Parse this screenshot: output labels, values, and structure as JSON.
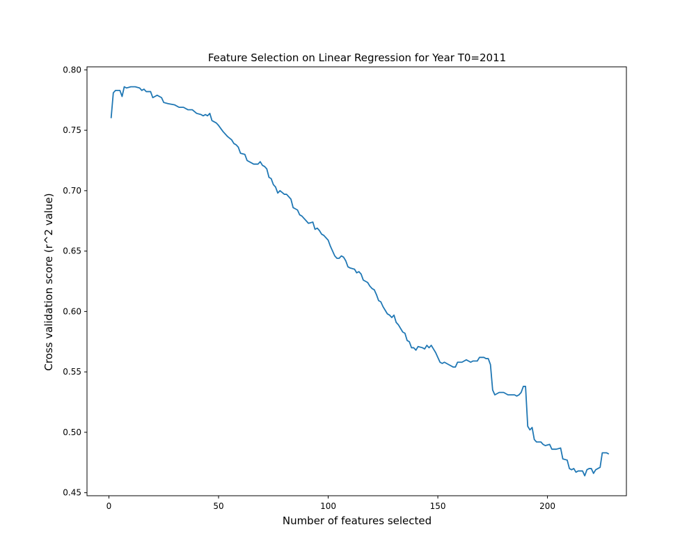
{
  "chart_data": {
    "type": "line",
    "title": "Feature Selection on Linear Regression for Year T0=2011",
    "xlabel": "Number of features selected",
    "ylabel": "Cross validation score (r^2 value)",
    "xlim": [
      -10,
      236
    ],
    "ylim": [
      0.4475,
      0.8025
    ],
    "xticks": [
      0,
      50,
      100,
      150,
      200
    ],
    "xtick_labels": [
      "0",
      "50",
      "100",
      "150",
      "200"
    ],
    "yticks": [
      0.45,
      0.5,
      0.55,
      0.6,
      0.65,
      0.7,
      0.75,
      0.8
    ],
    "ytick_labels": [
      "0.45",
      "0.50",
      "0.55",
      "0.60",
      "0.65",
      "0.70",
      "0.75",
      "0.80"
    ],
    "grid": false,
    "legend": "none",
    "series": [
      {
        "color": "#1f77b4",
        "points": [
          [
            1,
            0.76
          ],
          [
            2,
            0.781
          ],
          [
            3,
            0.783
          ],
          [
            5,
            0.783
          ],
          [
            6,
            0.778
          ],
          [
            7,
            0.786
          ],
          [
            8,
            0.785
          ],
          [
            10,
            0.786
          ],
          [
            12,
            0.786
          ],
          [
            14,
            0.785
          ],
          [
            15,
            0.783
          ],
          [
            16,
            0.784
          ],
          [
            17,
            0.782
          ],
          [
            19,
            0.782
          ],
          [
            20,
            0.777
          ],
          [
            22,
            0.779
          ],
          [
            24,
            0.777
          ],
          [
            25,
            0.773
          ],
          [
            27,
            0.772
          ],
          [
            30,
            0.771
          ],
          [
            32,
            0.769
          ],
          [
            34,
            0.769
          ],
          [
            36,
            0.767
          ],
          [
            38,
            0.767
          ],
          [
            40,
            0.764
          ],
          [
            42,
            0.763
          ],
          [
            43,
            0.762
          ],
          [
            44,
            0.763
          ],
          [
            45,
            0.762
          ],
          [
            46,
            0.764
          ],
          [
            47,
            0.758
          ],
          [
            49,
            0.756
          ],
          [
            50,
            0.754
          ],
          [
            52,
            0.749
          ],
          [
            54,
            0.745
          ],
          [
            56,
            0.742
          ],
          [
            57,
            0.739
          ],
          [
            58,
            0.738
          ],
          [
            59,
            0.736
          ],
          [
            60,
            0.731
          ],
          [
            62,
            0.73
          ],
          [
            63,
            0.725
          ],
          [
            65,
            0.723
          ],
          [
            66,
            0.722
          ],
          [
            68,
            0.722
          ],
          [
            69,
            0.724
          ],
          [
            70,
            0.721
          ],
          [
            71,
            0.72
          ],
          [
            72,
            0.718
          ],
          [
            73,
            0.711
          ],
          [
            74,
            0.71
          ],
          [
            75,
            0.705
          ],
          [
            76,
            0.703
          ],
          [
            77,
            0.698
          ],
          [
            78,
            0.7
          ],
          [
            80,
            0.697
          ],
          [
            81,
            0.697
          ],
          [
            82,
            0.695
          ],
          [
            83,
            0.693
          ],
          [
            84,
            0.686
          ],
          [
            85,
            0.685
          ],
          [
            86,
            0.684
          ],
          [
            87,
            0.68
          ],
          [
            88,
            0.679
          ],
          [
            90,
            0.675
          ],
          [
            91,
            0.673
          ],
          [
            93,
            0.674
          ],
          [
            94,
            0.668
          ],
          [
            95,
            0.669
          ],
          [
            96,
            0.667
          ],
          [
            97,
            0.664
          ],
          [
            98,
            0.663
          ],
          [
            100,
            0.659
          ],
          [
            101,
            0.654
          ],
          [
            103,
            0.646
          ],
          [
            104,
            0.644
          ],
          [
            105,
            0.644
          ],
          [
            106,
            0.646
          ],
          [
            107,
            0.645
          ],
          [
            108,
            0.642
          ],
          [
            109,
            0.637
          ],
          [
            110,
            0.636
          ],
          [
            112,
            0.635
          ],
          [
            113,
            0.632
          ],
          [
            114,
            0.633
          ],
          [
            115,
            0.631
          ],
          [
            116,
            0.626
          ],
          [
            117,
            0.625
          ],
          [
            118,
            0.624
          ],
          [
            119,
            0.621
          ],
          [
            120,
            0.619
          ],
          [
            121,
            0.618
          ],
          [
            122,
            0.614
          ],
          [
            123,
            0.609
          ],
          [
            124,
            0.608
          ],
          [
            125,
            0.604
          ],
          [
            126,
            0.601
          ],
          [
            127,
            0.598
          ],
          [
            128,
            0.597
          ],
          [
            129,
            0.595
          ],
          [
            130,
            0.597
          ],
          [
            131,
            0.591
          ],
          [
            132,
            0.589
          ],
          [
            134,
            0.583
          ],
          [
            135,
            0.582
          ],
          [
            136,
            0.576
          ],
          [
            137,
            0.575
          ],
          [
            138,
            0.57
          ],
          [
            139,
            0.57
          ],
          [
            140,
            0.568
          ],
          [
            141,
            0.571
          ],
          [
            143,
            0.57
          ],
          [
            144,
            0.569
          ],
          [
            145,
            0.572
          ],
          [
            146,
            0.57
          ],
          [
            147,
            0.572
          ],
          [
            148,
            0.569
          ],
          [
            149,
            0.566
          ],
          [
            150,
            0.562
          ],
          [
            151,
            0.558
          ],
          [
            152,
            0.557
          ],
          [
            153,
            0.558
          ],
          [
            154,
            0.557
          ],
          [
            155,
            0.556
          ],
          [
            156,
            0.555
          ],
          [
            157,
            0.554
          ],
          [
            158,
            0.554
          ],
          [
            159,
            0.558
          ],
          [
            161,
            0.558
          ],
          [
            162,
            0.559
          ],
          [
            163,
            0.56
          ],
          [
            165,
            0.558
          ],
          [
            166,
            0.559
          ],
          [
            168,
            0.559
          ],
          [
            169,
            0.562
          ],
          [
            171,
            0.562
          ],
          [
            172,
            0.561
          ],
          [
            173,
            0.561
          ],
          [
            174,
            0.556
          ],
          [
            175,
            0.535
          ],
          [
            176,
            0.531
          ],
          [
            177,
            0.532
          ],
          [
            178,
            0.533
          ],
          [
            180,
            0.533
          ],
          [
            181,
            0.532
          ],
          [
            182,
            0.531
          ],
          [
            184,
            0.531
          ],
          [
            185,
            0.531
          ],
          [
            186,
            0.53
          ],
          [
            187,
            0.531
          ],
          [
            188,
            0.533
          ],
          [
            189,
            0.538
          ],
          [
            190,
            0.538
          ],
          [
            191,
            0.505
          ],
          [
            192,
            0.502
          ],
          [
            193,
            0.504
          ],
          [
            194,
            0.494
          ],
          [
            195,
            0.492
          ],
          [
            197,
            0.492
          ],
          [
            198,
            0.49
          ],
          [
            199,
            0.489
          ],
          [
            201,
            0.49
          ],
          [
            202,
            0.486
          ],
          [
            204,
            0.486
          ],
          [
            206,
            0.487
          ],
          [
            207,
            0.478
          ],
          [
            209,
            0.477
          ],
          [
            210,
            0.47
          ],
          [
            211,
            0.469
          ],
          [
            212,
            0.47
          ],
          [
            213,
            0.467
          ],
          [
            214,
            0.468
          ],
          [
            216,
            0.468
          ],
          [
            217,
            0.464
          ],
          [
            218,
            0.469
          ],
          [
            219,
            0.47
          ],
          [
            220,
            0.47
          ],
          [
            221,
            0.466
          ],
          [
            222,
            0.469
          ],
          [
            224,
            0.471
          ],
          [
            225,
            0.483
          ],
          [
            227,
            0.483
          ],
          [
            228,
            0.482
          ]
        ]
      }
    ]
  }
}
